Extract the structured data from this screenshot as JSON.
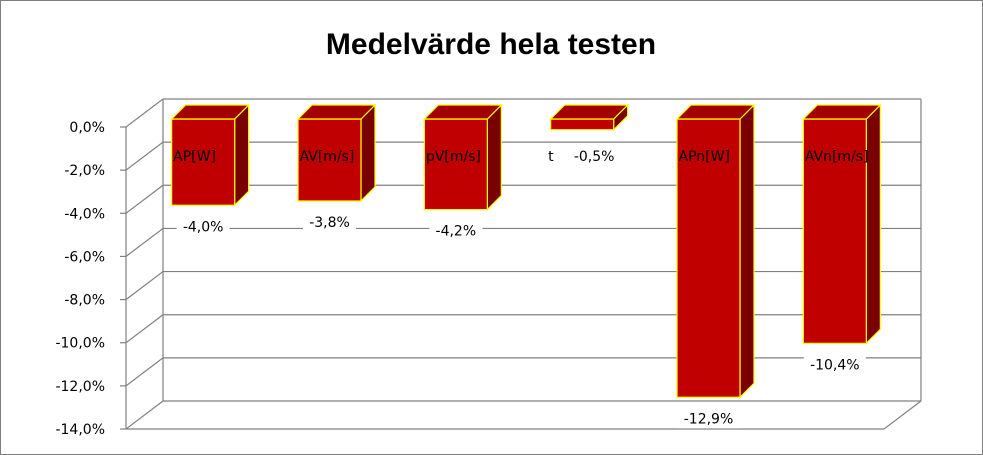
{
  "chart_data": {
    "type": "bar",
    "title": "Medelvärde hela testen",
    "categories": [
      "AP[W]",
      "AV[m/s]",
      "pV[m/s]",
      "t",
      "APn[W]",
      "AVn[m/s]"
    ],
    "values": [
      -4.0,
      -3.8,
      -4.2,
      -0.5,
      -12.9,
      -10.4
    ],
    "data_labels": [
      "-4,0%",
      "-3,8%",
      "-4,2%",
      "-0,5%",
      "-12,9%",
      "-10,4%"
    ],
    "y_ticks": [
      "0,0%",
      "-2,0%",
      "-4,0%",
      "-6,0%",
      "-8,0%",
      "-10,0%",
      "-12,0%",
      "-14,0%"
    ],
    "y_tick_values": [
      0,
      -2,
      -4,
      -6,
      -8,
      -10,
      -12,
      -14
    ],
    "ylim": [
      -14,
      0
    ],
    "y_unit": "%",
    "grid": true,
    "legend": "none",
    "three_d": true,
    "colors": {
      "bar_front": "#c00000",
      "bar_side": "#7a0000",
      "bar_top": "#a30000",
      "bar_edge": "#ffff00",
      "grid": "#808080"
    }
  }
}
